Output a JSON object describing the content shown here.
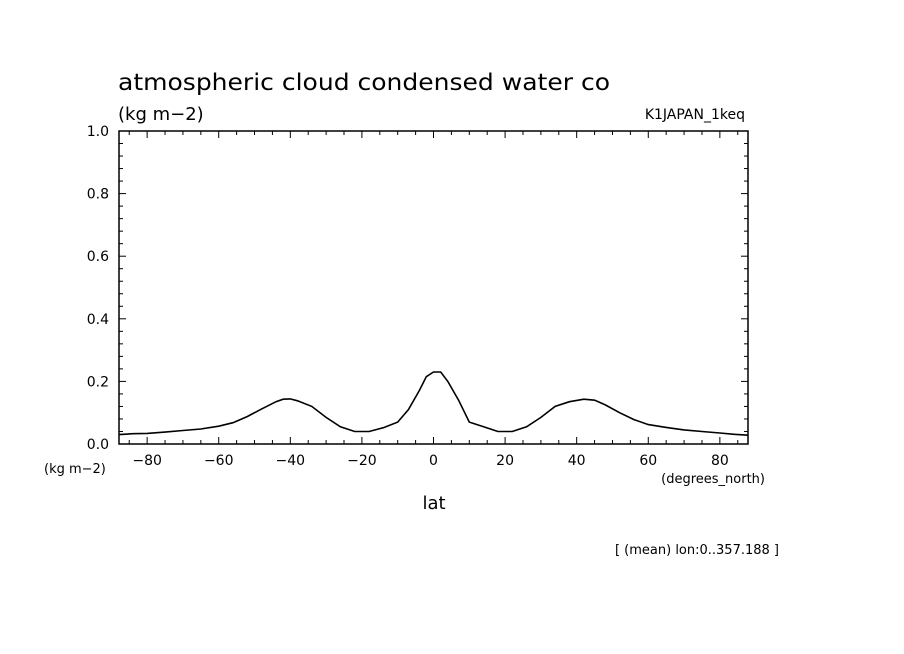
{
  "chart_data": {
    "type": "line",
    "title": "atmospheric cloud condensed water co",
    "unit_label": "(kg m−2)",
    "run_label": "K1JAPAN_1keq",
    "y_axis_unit": "(kg m−2)",
    "x_axis_unit": "(degrees_north)",
    "xlabel": "lat",
    "footnote": "[ (mean) lon:0..357.188 ]",
    "xlim": [
      -87.86,
      87.86
    ],
    "ylim": [
      0,
      1.0
    ],
    "x_ticks": [
      -80,
      -60,
      -40,
      -20,
      0,
      20,
      40,
      60,
      80
    ],
    "x_tick_labels": [
      "−80",
      "−60",
      "−40",
      "−20",
      "0",
      "20",
      "40",
      "60",
      "80"
    ],
    "y_ticks": [
      0,
      0.2,
      0.4,
      0.6,
      0.8,
      1.0
    ],
    "y_tick_labels": [
      "0.0",
      "0.2",
      "0.4",
      "0.6",
      "0.8",
      "1.0"
    ],
    "grid": false,
    "series": [
      {
        "x": [
          -87.86,
          -84,
          -80,
          -75,
          -70,
          -65,
          -60,
          -56,
          -52,
          -48,
          -44,
          -42,
          -40,
          -38,
          -34,
          -30,
          -26,
          -22,
          -18,
          -14,
          -10,
          -7,
          -4,
          -2,
          0,
          2,
          4,
          7,
          10,
          14,
          18,
          22,
          26,
          30,
          34,
          38,
          42,
          45,
          48,
          52,
          56,
          60,
          65,
          70,
          75,
          80,
          84,
          87.86
        ],
        "y": [
          0.03,
          0.033,
          0.034,
          0.038,
          0.043,
          0.048,
          0.057,
          0.068,
          0.088,
          0.112,
          0.135,
          0.143,
          0.144,
          0.138,
          0.12,
          0.085,
          0.055,
          0.04,
          0.04,
          0.052,
          0.07,
          0.11,
          0.17,
          0.215,
          0.23,
          0.23,
          0.2,
          0.14,
          0.07,
          0.055,
          0.04,
          0.04,
          0.055,
          0.085,
          0.12,
          0.135,
          0.143,
          0.14,
          0.125,
          0.1,
          0.078,
          0.062,
          0.053,
          0.045,
          0.04,
          0.035,
          0.031,
          0.028
        ]
      }
    ]
  }
}
